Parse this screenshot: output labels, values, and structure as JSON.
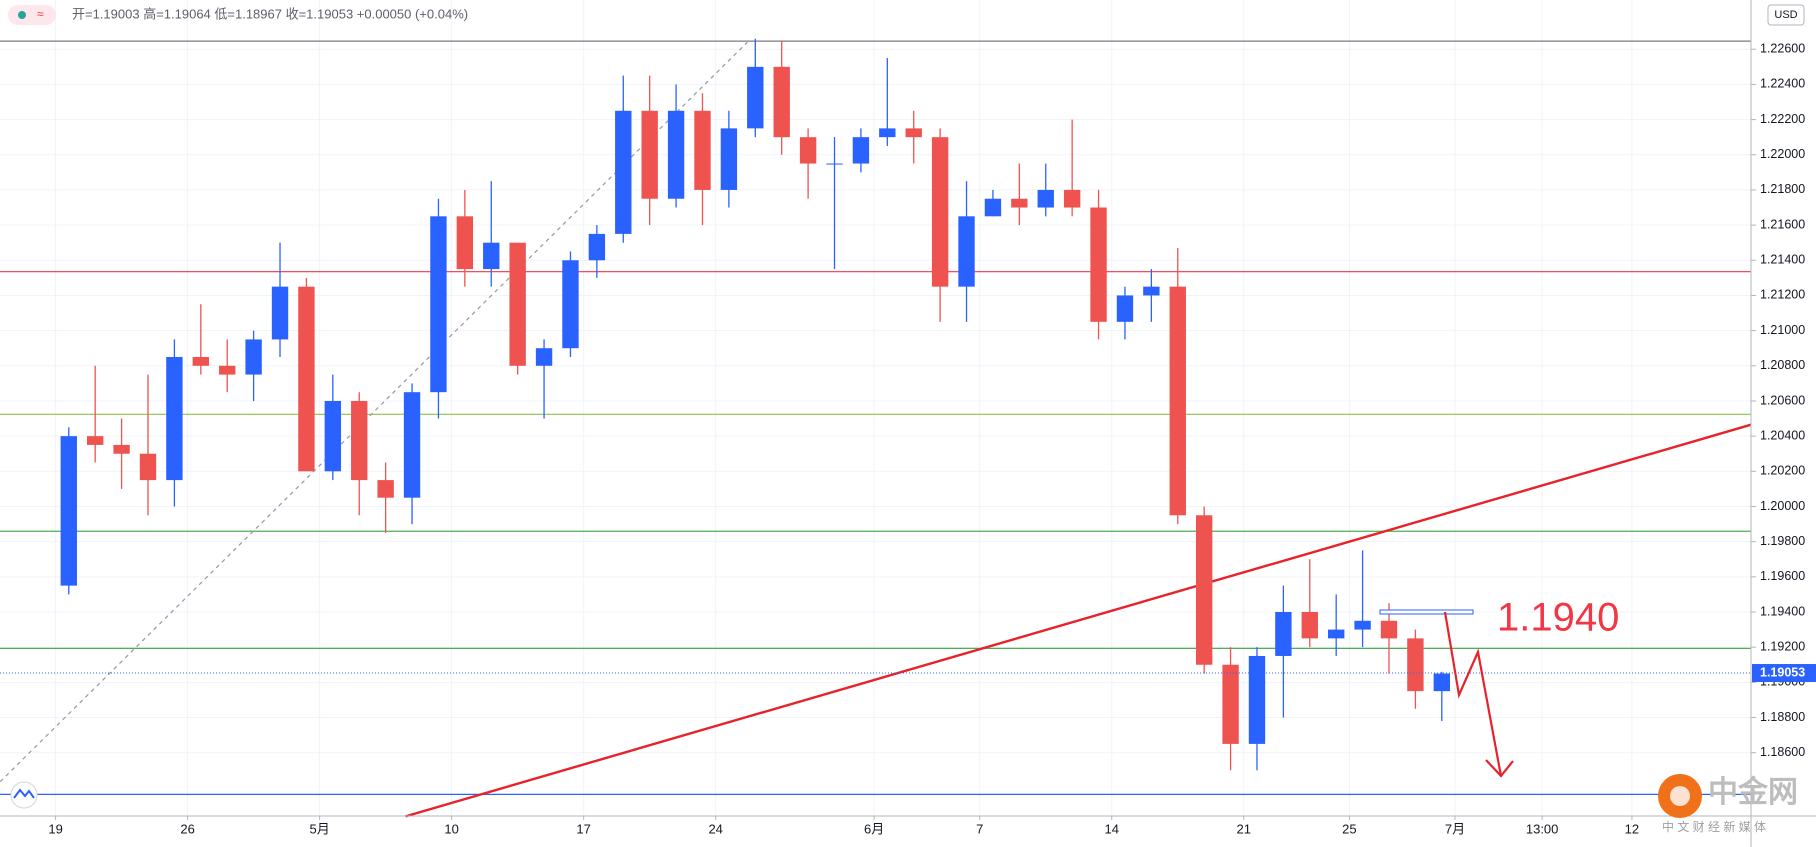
{
  "chart_data": {
    "type": "candlestick",
    "legend_text": "开=1.19003 高=1.19064 低=1.18967 收=1.19053 +0.00050 (+0.04%)",
    "currency": "USD",
    "up_color": "#2962ff",
    "down_color": "#ef5350",
    "grid": true,
    "xlim": [
      -2.105,
      64.21
    ],
    "ylim": [
      1.1824,
      1.2288
    ],
    "xticks": [
      {
        "value": 0,
        "label": "19"
      },
      {
        "value": 5,
        "label": "26"
      },
      {
        "value": 10,
        "label": "5月"
      },
      {
        "value": 15,
        "label": "10"
      },
      {
        "value": 20,
        "label": "17"
      },
      {
        "value": 25,
        "label": "24"
      },
      {
        "value": 31,
        "label": "6月"
      },
      {
        "value": 35,
        "label": "7"
      },
      {
        "value": 40,
        "label": "14"
      },
      {
        "value": 45,
        "label": "21"
      },
      {
        "value": 49,
        "label": "25"
      },
      {
        "value": 53,
        "label": "7月"
      },
      {
        "value": 56.3,
        "label": "13:00"
      },
      {
        "value": 59.7,
        "label": "12"
      }
    ],
    "yticks": [
      {
        "value": 1.186,
        "label": "1.18600"
      },
      {
        "value": 1.188,
        "label": "1.18800"
      },
      {
        "value": 1.19,
        "label": "1.19000"
      },
      {
        "value": 1.192,
        "label": "1.19200"
      },
      {
        "value": 1.194,
        "label": "1.19400"
      },
      {
        "value": 1.196,
        "label": "1.19600"
      },
      {
        "value": 1.198,
        "label": "1.19800"
      },
      {
        "value": 1.2,
        "label": "1.20000"
      },
      {
        "value": 1.202,
        "label": "1.20200"
      },
      {
        "value": 1.204,
        "label": "1.20400"
      },
      {
        "value": 1.206,
        "label": "1.20600"
      },
      {
        "value": 1.208,
        "label": "1.20800"
      },
      {
        "value": 1.21,
        "label": "1.21000"
      },
      {
        "value": 1.212,
        "label": "1.21200"
      },
      {
        "value": 1.214,
        "label": "1.21400"
      },
      {
        "value": 1.216,
        "label": "1.21600"
      },
      {
        "value": 1.218,
        "label": "1.21800"
      },
      {
        "value": 1.22,
        "label": "1.22000"
      },
      {
        "value": 1.222,
        "label": "1.22200"
      },
      {
        "value": 1.224,
        "label": "1.22400"
      },
      {
        "value": 1.226,
        "label": "1.22600"
      }
    ],
    "x": [
      0.5,
      1.5,
      2.5,
      3.5,
      4.5,
      5.5,
      6.5,
      7.5,
      8.5,
      9.5,
      10.5,
      11.5,
      12.5,
      13.5,
      14.5,
      15.5,
      16.5,
      17.5,
      18.5,
      19.5,
      20.5,
      21.5,
      22.5,
      23.5,
      24.5,
      25.5,
      26.5,
      27.5,
      28.5,
      29.5,
      30.5,
      31.5,
      32.5,
      33.5,
      34.5,
      35.5,
      36.5,
      37.5,
      38.5,
      39.5,
      40.5,
      41.5,
      42.5,
      43.5,
      44.5,
      45.5,
      46.5,
      47.5,
      48.5,
      49.5,
      50.5,
      51.5,
      52.5
    ],
    "open": [
      1.1955,
      1.204,
      1.2035,
      1.203,
      1.2015,
      1.2085,
      1.208,
      1.2075,
      1.2095,
      1.2125,
      1.202,
      1.206,
      1.2015,
      1.2005,
      1.2065,
      1.2165,
      1.2135,
      1.215,
      1.208,
      1.209,
      1.214,
      1.2155,
      1.2225,
      1.2175,
      1.2225,
      1.218,
      1.2215,
      1.225,
      1.221,
      1.2195,
      1.2195,
      1.221,
      1.2215,
      1.221,
      1.2125,
      1.2165,
      1.2175,
      1.217,
      1.218,
      1.217,
      1.2105,
      1.212,
      1.2125,
      1.1995,
      1.191,
      1.1865,
      1.1915,
      1.194,
      1.1925,
      1.193,
      1.1935,
      1.1925,
      1.1895
    ],
    "high": [
      1.2045,
      1.208,
      1.205,
      1.2075,
      1.2095,
      1.2115,
      1.2095,
      1.21,
      1.215,
      1.213,
      1.2075,
      1.2065,
      1.2025,
      1.207,
      1.2175,
      1.218,
      1.2185,
      1.215,
      1.2095,
      1.2145,
      1.216,
      1.2245,
      1.2245,
      1.224,
      1.2235,
      1.2225,
      1.2266,
      1.2265,
      1.2215,
      1.221,
      1.2215,
      1.2255,
      1.2225,
      1.2215,
      1.2185,
      1.218,
      1.2195,
      1.2195,
      1.222,
      1.218,
      1.2125,
      1.2135,
      1.2147,
      1.2,
      1.192,
      1.192,
      1.1955,
      1.197,
      1.195,
      1.1975,
      1.1945,
      1.193,
      1.1906
    ],
    "low": [
      1.195,
      1.2025,
      1.201,
      1.1995,
      1.2,
      1.2075,
      1.2065,
      1.206,
      1.2085,
      1.202,
      1.2015,
      1.1995,
      1.1985,
      1.199,
      1.205,
      1.2125,
      1.2125,
      1.2075,
      1.205,
      1.2085,
      1.213,
      1.215,
      1.216,
      1.217,
      1.216,
      1.217,
      1.221,
      1.22,
      1.2175,
      1.2135,
      1.219,
      1.2205,
      1.2195,
      1.2105,
      1.2105,
      1.2165,
      1.216,
      1.2165,
      1.2165,
      1.2095,
      1.2095,
      1.2105,
      1.199,
      1.1905,
      1.185,
      1.185,
      1.188,
      1.192,
      1.1915,
      1.192,
      1.1905,
      1.1885,
      1.1878
    ],
    "close": [
      1.204,
      1.2035,
      1.203,
      1.2015,
      1.2085,
      1.208,
      1.2075,
      1.2095,
      1.2125,
      1.202,
      1.206,
      1.2015,
      1.2005,
      1.2065,
      1.2165,
      1.2135,
      1.215,
      1.208,
      1.209,
      1.214,
      1.2155,
      1.2225,
      1.2175,
      1.2225,
      1.218,
      1.2215,
      1.225,
      1.221,
      1.2195,
      1.2195,
      1.221,
      1.2215,
      1.221,
      1.2125,
      1.2165,
      1.2175,
      1.217,
      1.218,
      1.217,
      1.2105,
      1.212,
      1.2125,
      1.1995,
      1.191,
      1.1865,
      1.1915,
      1.194,
      1.1925,
      1.193,
      1.1935,
      1.1925,
      1.1895,
      1.1905
    ],
    "hlines": [
      {
        "value": 1.22646,
        "color": "#787b86"
      },
      {
        "value": 1.21335,
        "color": "#f23645"
      },
      {
        "value": 1.20524,
        "color": "#8bc34a"
      },
      {
        "value": 1.19859,
        "color": "#4caf50"
      },
      {
        "value": 1.19193,
        "color": "#4caf50"
      },
      {
        "value": 1.18363,
        "color": "#2962ff"
      }
    ],
    "trendlines": [
      {
        "x": [
          13.25,
          64.21
        ],
        "y": [
          1.18238,
          1.20465
        ],
        "color": "#e8222a",
        "dash": false
      },
      {
        "x": [
          -2.1,
          26.2
        ],
        "y": [
          1.18435,
          1.2264
        ],
        "color": "#9598a1",
        "dash": true
      }
    ],
    "current_price": {
      "value": 1.19053,
      "label": "1.19053",
      "color": "#2962ff"
    },
    "annotation": {
      "value": 1.194,
      "label": "1.1940",
      "color": "#f23645"
    },
    "watermark": {
      "title": "中金网",
      "subtitle": "中 文 财 经 新 媒 体"
    }
  }
}
